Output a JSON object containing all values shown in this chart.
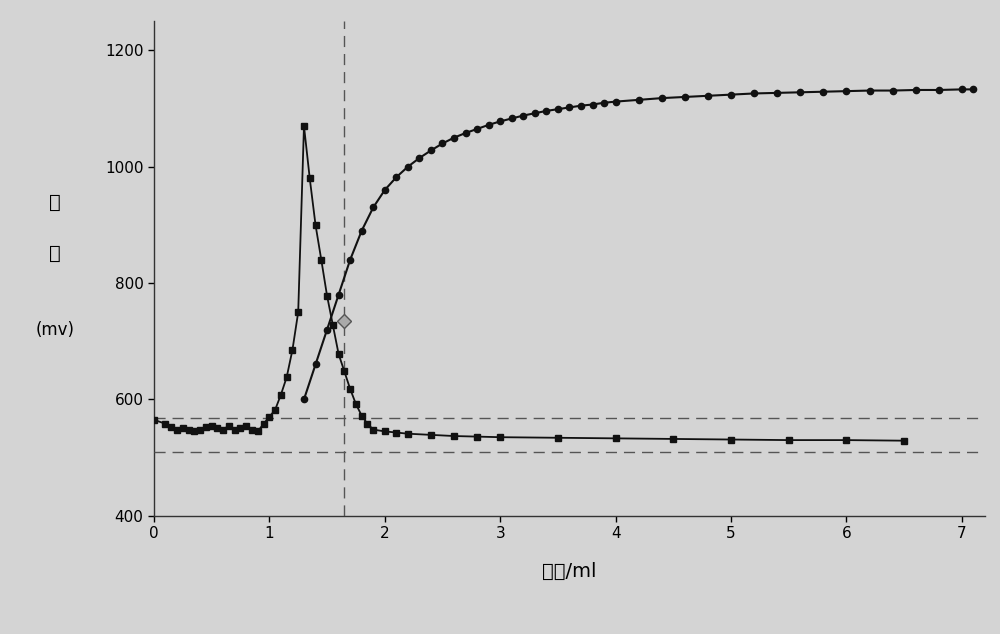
{
  "title": "",
  "xlabel": "体积/ml",
  "xlim": [
    0,
    7.2
  ],
  "ylim": [
    400,
    1250
  ],
  "xticks": [
    0,
    1,
    2,
    3,
    4,
    5,
    6,
    7
  ],
  "yticks": [
    400,
    600,
    800,
    1000,
    1200
  ],
  "hline1": 568,
  "hline2": 510,
  "vline1": 1.65,
  "bg_color": "#d4d4d4",
  "line_color": "#111111",
  "dashed_color": "#555555",
  "curve1_x": [
    0.0,
    0.1,
    0.15,
    0.2,
    0.25,
    0.3,
    0.35,
    0.4,
    0.45,
    0.5,
    0.55,
    0.6,
    0.65,
    0.7,
    0.75,
    0.8,
    0.85,
    0.9,
    0.95,
    1.0,
    1.05,
    1.1,
    1.15,
    1.2,
    1.25,
    1.3,
    1.35,
    1.4,
    1.45,
    1.5,
    1.55,
    1.6,
    1.65,
    1.7,
    1.75,
    1.8,
    1.85,
    1.9,
    2.0,
    2.1,
    2.2,
    2.4,
    2.6,
    2.8,
    3.0,
    3.5,
    4.0,
    4.5,
    5.0,
    5.5,
    6.0,
    6.5
  ],
  "curve1_y": [
    565,
    558,
    553,
    548,
    550,
    547,
    545,
    548,
    552,
    555,
    550,
    548,
    555,
    548,
    550,
    555,
    548,
    545,
    558,
    570,
    582,
    608,
    638,
    685,
    750,
    1070,
    980,
    900,
    840,
    778,
    728,
    678,
    648,
    618,
    592,
    572,
    558,
    548,
    545,
    543,
    541,
    539,
    537,
    536,
    535,
    534,
    533,
    532,
    531,
    530,
    530,
    529
  ],
  "curve2_x": [
    1.3,
    1.4,
    1.5,
    1.6,
    1.7,
    1.8,
    1.9,
    2.0,
    2.1,
    2.2,
    2.3,
    2.4,
    2.5,
    2.6,
    2.7,
    2.8,
    2.9,
    3.0,
    3.1,
    3.2,
    3.3,
    3.4,
    3.5,
    3.6,
    3.7,
    3.8,
    3.9,
    4.0,
    4.2,
    4.4,
    4.6,
    4.8,
    5.0,
    5.2,
    5.4,
    5.6,
    5.8,
    6.0,
    6.2,
    6.4,
    6.6,
    6.8,
    7.0,
    7.1
  ],
  "curve2_y": [
    600,
    660,
    720,
    780,
    840,
    890,
    930,
    960,
    982,
    1000,
    1015,
    1028,
    1040,
    1050,
    1058,
    1065,
    1072,
    1078,
    1083,
    1088,
    1092,
    1096,
    1099,
    1102,
    1105,
    1107,
    1110,
    1112,
    1115,
    1118,
    1120,
    1122,
    1124,
    1126,
    1127,
    1128,
    1129,
    1130,
    1131,
    1131,
    1132,
    1132,
    1133,
    1133
  ],
  "diamond_x": 1.65,
  "diamond_y": 735
}
